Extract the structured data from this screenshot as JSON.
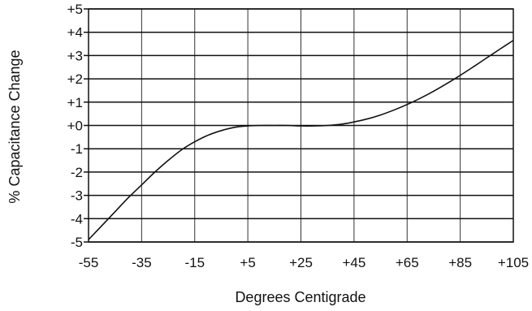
{
  "chart_data": {
    "type": "line",
    "xlabel": "Degrees Centigrade",
    "ylabel": "% Capacitance Change",
    "xlim": [
      -55,
      105
    ],
    "ylim": [
      -5,
      5
    ],
    "x_ticks": [
      -55,
      -35,
      -15,
      5,
      25,
      45,
      65,
      85,
      105
    ],
    "x_tick_labels": [
      "-55",
      "-35",
      "-15",
      "+5",
      "+25",
      "+45",
      "+65",
      "+85",
      "+105"
    ],
    "y_ticks": [
      5,
      4,
      3,
      2,
      1,
      0,
      -1,
      -2,
      -3,
      -4,
      -5
    ],
    "y_tick_labels": [
      "+5",
      "+4",
      "+3",
      "+2",
      "+1",
      "+0",
      "-1",
      "-2",
      "-3",
      "-4",
      "-5"
    ],
    "grid": true,
    "series": [
      {
        "x": [
          -55,
          -50,
          -45,
          -40,
          -35,
          -30,
          -25,
          -20,
          -15,
          -10,
          -5,
          0,
          5,
          10,
          15,
          20,
          25,
          30,
          35,
          40,
          45,
          50,
          55,
          60,
          65,
          70,
          75,
          80,
          85,
          90,
          95,
          100,
          105
        ],
        "y": [
          -4.9,
          -4.3,
          -3.7,
          -3.1,
          -2.55,
          -2.0,
          -1.5,
          -1.05,
          -0.7,
          -0.42,
          -0.22,
          -0.08,
          -0.02,
          0.0,
          0.0,
          0.0,
          -0.02,
          -0.02,
          0.0,
          0.05,
          0.15,
          0.28,
          0.45,
          0.66,
          0.9,
          1.17,
          1.47,
          1.8,
          2.15,
          2.52,
          2.9,
          3.28,
          3.65
        ]
      }
    ]
  }
}
